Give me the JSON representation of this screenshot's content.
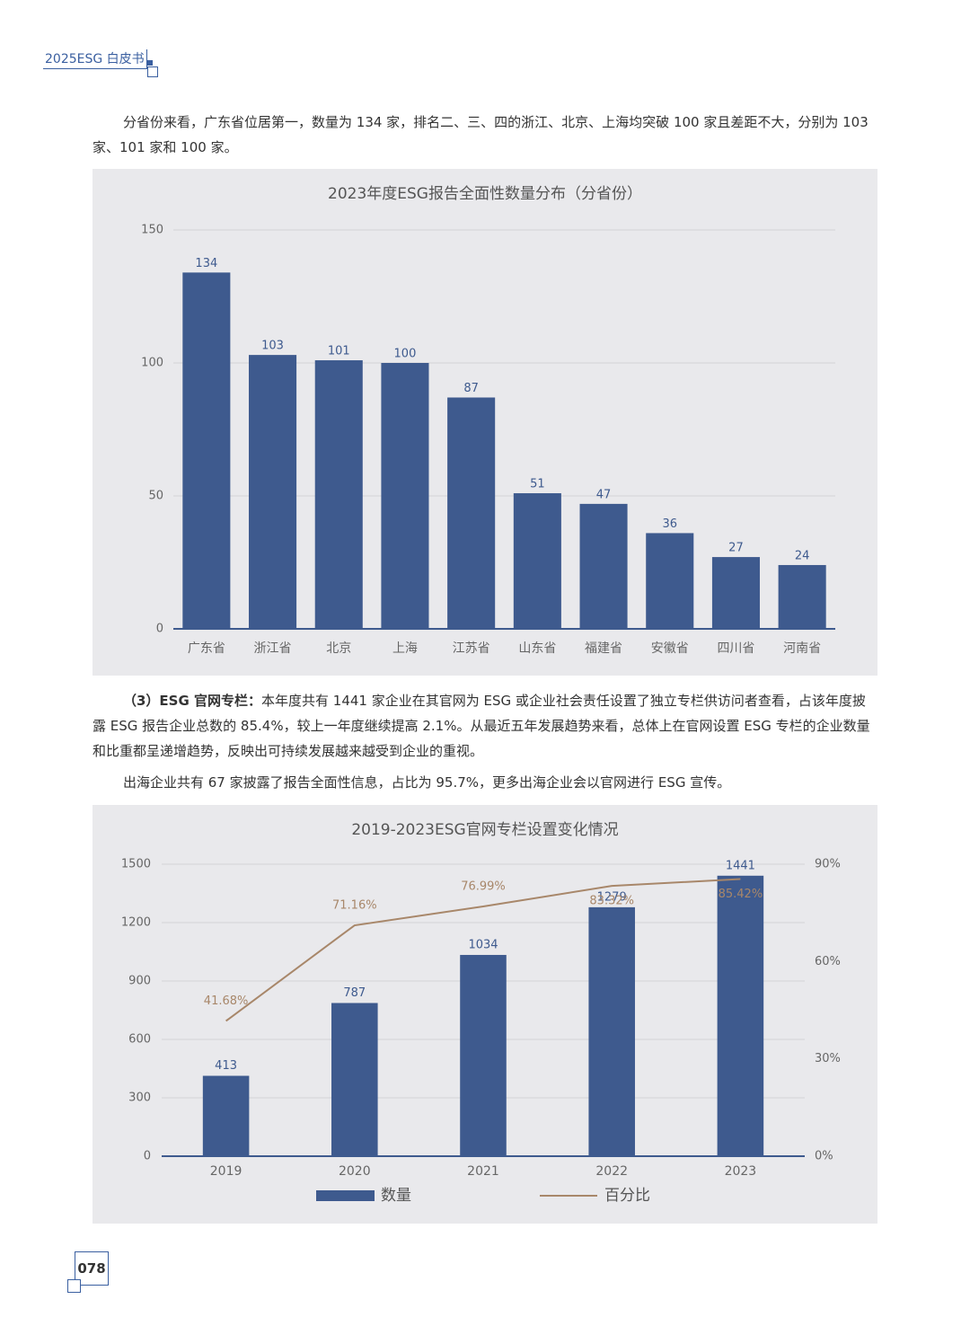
{
  "header": {
    "title": "2025ESG 白皮书"
  },
  "paragraphs": [
    {
      "text": "分省份来看，广东省位居第一，数量为 134 家，排名二、三、四的浙江、北京、上海均突破 100 家且差距不大，分别为 103 家、101 家和 100 家。"
    },
    {
      "lead": "（3）ESG 官网专栏：",
      "text": "本年度共有 1441 家企业在其官网为 ESG 或企业社会责任设置了独立专栏供访问者查看，占该年度披露 ESG 报告企业总数的 85.4%，较上一年度继续提高 2.1%。从最近五年发展趋势来看，总体上在官网设置 ESG 专栏的企业数量和比重都呈递增趋势，反映出可持续发展越来越受到企业的重视。"
    },
    {
      "text": "出海企业共有 67 家披露了报告全面性信息，占比为 95.7%，更多出海企业会以官网进行 ESG 宣传。"
    }
  ],
  "chart_data": [
    {
      "type": "bar",
      "title": "2023年度ESG报告全面性数量分布（分省份）",
      "categories": [
        "广东省",
        "浙江省",
        "北京",
        "上海",
        "江苏省",
        "山东省",
        "福建省",
        "安徽省",
        "四川省",
        "河南省"
      ],
      "values": [
        134,
        103,
        101,
        100,
        87,
        51,
        47,
        36,
        27,
        24
      ],
      "color": "#3e5a8e",
      "ylim": [
        0,
        150
      ],
      "yticks": [
        0,
        50,
        100,
        150
      ],
      "grid": true
    },
    {
      "type": "combo",
      "title": "2019-2023ESG官网专栏设置变化情况",
      "categories": [
        "2019",
        "2020",
        "2021",
        "2022",
        "2023"
      ],
      "series": [
        {
          "name": "数量",
          "type": "bar",
          "color": "#3e5a8e",
          "values": [
            413,
            787,
            1034,
            1279,
            1441
          ]
        },
        {
          "name": "百分比",
          "type": "line",
          "axis": "y2",
          "color": "#a8876a",
          "values": [
            41.68,
            71.16,
            76.99,
            83.32,
            85.42
          ],
          "value_labels": [
            "41.68%",
            "71.16%",
            "76.99%",
            "83.32%",
            "85.42%"
          ]
        }
      ],
      "ylim": [
        0,
        1500
      ],
      "yticks": [
        0,
        300,
        600,
        900,
        1200,
        1500
      ],
      "y2lim": [
        0,
        90
      ],
      "y2ticks": [
        {
          "value": 0,
          "label": "0%"
        },
        {
          "value": 30,
          "label": "30%"
        },
        {
          "value": 60,
          "label": "60%"
        },
        {
          "value": 90,
          "label": "90%"
        }
      ],
      "grid": true,
      "legend": "bottom"
    }
  ],
  "page_number": "078"
}
